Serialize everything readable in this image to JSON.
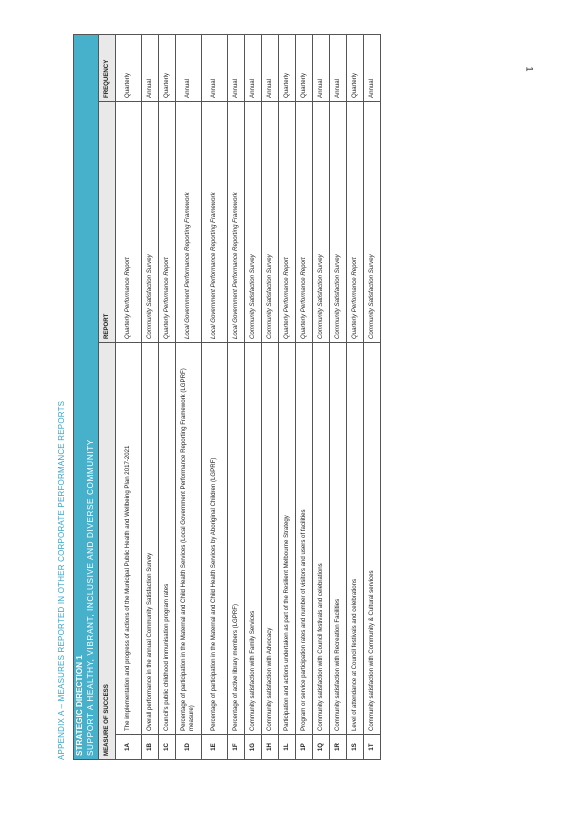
{
  "page_number": "1",
  "appendix_title": "APPENDIX A – MEASURES REPORTED IN OTHER CORPORATE PERFORMANCE REPORTS",
  "banner": {
    "direction": "STRATEGIC DIRECTION 1",
    "subtitle": "SUPPORT A HEALTHY, VIBRANT, INCLUSIVE AND DIVERSE COMMUNITY"
  },
  "columns": {
    "measure": "MEASURE OF SUCCESS",
    "report": "REPORT",
    "frequency": "FREQUENCY"
  },
  "rows": [
    {
      "code": "1A",
      "measure": "The implementation and progress of actions of the Municipal Public Health and Wellbeing Plan 2017-2021",
      "report": "Quarterly Performance Report",
      "frequency": "Quarterly"
    },
    {
      "code": "1B",
      "measure": "Overall performance in the annual Community Satisfaction Survey",
      "report": "Community Satisfaction Survey",
      "frequency": "Annual"
    },
    {
      "code": "1C",
      "measure": "Council's public childhood immunisation program rates",
      "report": "Quarterly Performance Report",
      "frequency": "Quarterly"
    },
    {
      "code": "1D",
      "measure": "Percentage of participation in the Maternal and Child Health Services (Local Government Performance Reporting Framework (LGPRF) measure)",
      "report": "Local Government Performance Reporting Framework",
      "frequency": "Annual"
    },
    {
      "code": "1E",
      "measure": "Percentage of participation in the Maternal and Child Health Services by Aboriginal Children (LGPRF)",
      "report": "Local Government Performance Reporting Framework",
      "frequency": "Annual"
    },
    {
      "code": "1F",
      "measure": "Percentage of active library members (LGPRF)",
      "report": "Local Government Performance Reporting Framework",
      "frequency": "Annual"
    },
    {
      "code": "1G",
      "measure": "Community satisfaction with Family Services",
      "report": "Community Satisfaction Survey",
      "frequency": "Annual"
    },
    {
      "code": "1H",
      "measure": "Community satisfaction with Advocacy",
      "report": "Community Satisfaction Survey",
      "frequency": "Annual"
    },
    {
      "code": "1L",
      "measure": "Participation and actions undertaken as part of the Resilient Melbourne Strategy",
      "report": "Quarterly Performance Report",
      "frequency": "Quarterly"
    },
    {
      "code": "1P",
      "measure": "Program or service participation rates and number of visitors and users of facilities",
      "report": "Quarterly Performance Report",
      "frequency": "Quarterly"
    },
    {
      "code": "1Q",
      "measure": "Community satisfaction with Council festivals and celebrations",
      "report": "Community Satisfaction Survey",
      "frequency": "Annual"
    },
    {
      "code": "1R",
      "measure": "Community satisfaction with Recreation Facilities",
      "report": "Community Satisfaction Survey",
      "frequency": "Annual"
    },
    {
      "code": "1S",
      "measure": "Level of attendance at Council festivals and celebrations",
      "report": "Quarterly Performance Report",
      "frequency": "Quarterly"
    },
    {
      "code": "1T",
      "measure": "Community satisfaction with Community & Cultural services",
      "report": "Community Satisfaction Survey",
      "frequency": "Annual"
    }
  ]
}
